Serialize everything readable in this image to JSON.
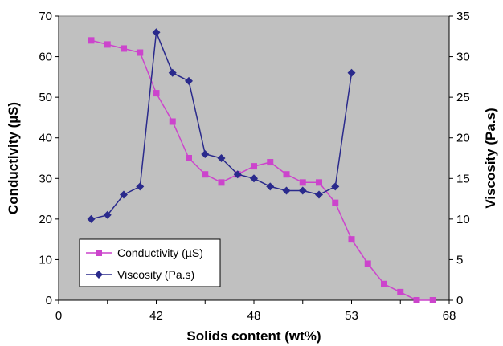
{
  "chart_data": {
    "type": "line",
    "title": "",
    "xlabel": "Solids content (wt%)",
    "ylabel_left": "Conductivity (µS)",
    "ylabel_right": "Viscosity (Pa.s)",
    "x_tick_labels": [
      "0",
      "42",
      "48",
      "53",
      "68"
    ],
    "x_tick_label_values": [
      0,
      42,
      48,
      53,
      68
    ],
    "y_left_ticks": [
      0,
      10,
      20,
      30,
      40,
      50,
      60,
      70
    ],
    "y_right_ticks": [
      0,
      5,
      10,
      15,
      20,
      25,
      30,
      35
    ],
    "y_left_range": [
      0,
      70
    ],
    "y_right_range": [
      0,
      35
    ],
    "x_range": [
      0,
      24
    ],
    "plot_background": "#c0c0c0",
    "grid": false,
    "legend_position": "bottom-left",
    "series": [
      {
        "name": "Conductivity (µS)",
        "axis": "left",
        "marker": "square",
        "color": "#cc44cc",
        "x": [
          2,
          3,
          4,
          5,
          6,
          7,
          8,
          9,
          10,
          11,
          12,
          13,
          14,
          15,
          16,
          17,
          18,
          19,
          20,
          21,
          22,
          23
        ],
        "values": [
          64,
          63,
          62,
          61,
          51,
          44,
          35,
          31,
          29,
          31,
          33,
          34,
          31,
          29,
          29,
          24,
          15,
          9,
          4,
          2,
          0,
          0
        ]
      },
      {
        "name": "Viscosity (Pa.s)",
        "axis": "right",
        "marker": "diamond",
        "color": "#2a2a8c",
        "x": [
          2,
          3,
          4,
          5,
          6,
          7,
          8,
          9,
          10,
          11,
          12,
          13,
          14,
          15,
          16,
          17,
          18
        ],
        "values": [
          10,
          10.5,
          13,
          14,
          33,
          28,
          27,
          18,
          17.5,
          15.5,
          15,
          14,
          13.5,
          13.5,
          13,
          14,
          28
        ]
      }
    ]
  }
}
